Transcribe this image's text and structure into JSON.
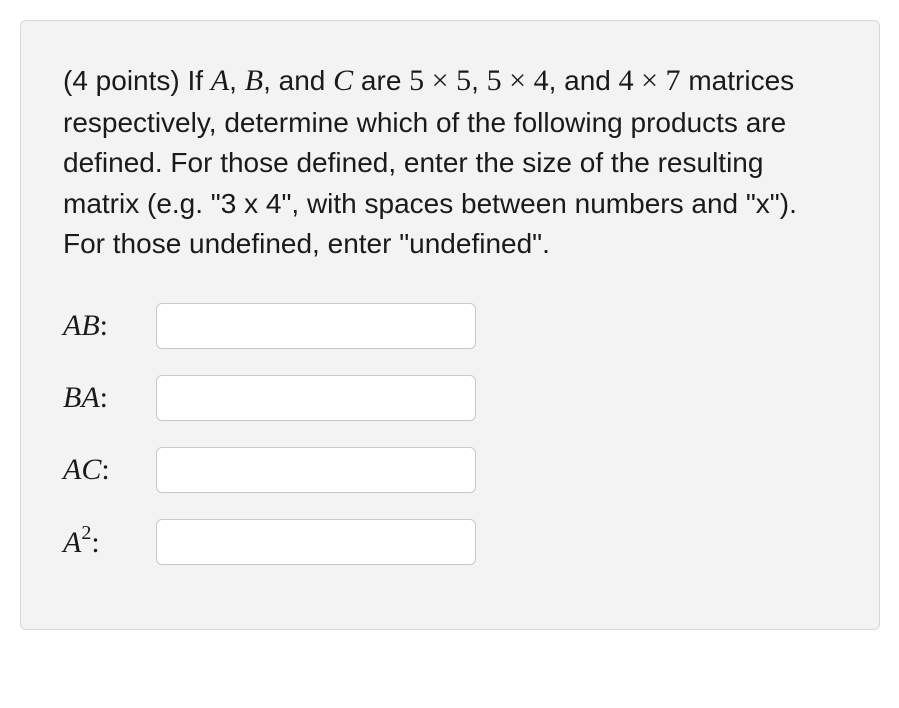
{
  "question": {
    "points_prefix": "(4 points) If ",
    "varA": "A",
    "sep1": ", ",
    "varB": "B",
    "sep2": ", and ",
    "varC": "C",
    "text1": " are ",
    "dim1": "5 × 5",
    "sep3": ", ",
    "dim2": "5 × 4",
    "sep4": ", and ",
    "dim3": "4 × 7",
    "text2": " matrices respectively, determine which of the following products are defined. For those defined, enter the size of the resulting matrix (e.g. \"3 x 4\", with spaces between numbers and \"x\"). For those undefined, enter \"undefined\"."
  },
  "answers": {
    "ab": {
      "label_a": "A",
      "label_b": "B",
      "colon": ":",
      "value": ""
    },
    "ba": {
      "label_a": "B",
      "label_b": "A",
      "colon": ":",
      "value": ""
    },
    "ac": {
      "label_a": "A",
      "label_b": "C",
      "colon": ":",
      "value": ""
    },
    "a2": {
      "label_a": "A",
      "exp": "2",
      "colon": ":",
      "value": ""
    }
  },
  "colors": {
    "container_bg": "#f3f3f3",
    "container_border": "#d8d8d8",
    "input_bg": "#ffffff",
    "input_border": "#c8c8c8",
    "text": "#1a1a1a"
  }
}
